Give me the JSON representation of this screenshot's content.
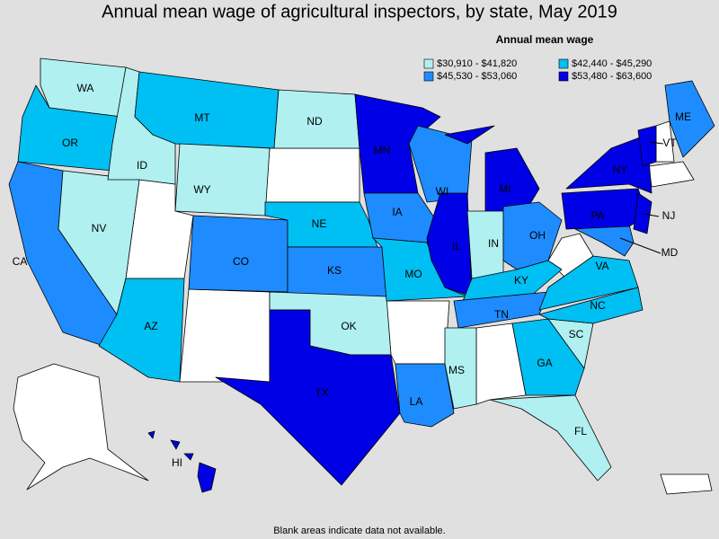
{
  "title": "Annual mean wage of agricultural inspectors, by state, May 2019",
  "legend": {
    "title": "Annual mean wage",
    "entries": [
      {
        "label": "$30,910 - $41,820",
        "color": "#b0f0f0"
      },
      {
        "label": "$42,440 - $45,290",
        "color": "#00bff2"
      },
      {
        "label": "$45,530 - $53,060",
        "color": "#1e8cff"
      },
      {
        "label": "$53,480 - $63,600",
        "color": "#0000e6"
      }
    ]
  },
  "states": [
    {
      "label": "WA",
      "bin": 0
    },
    {
      "label": "OR",
      "bin": 1
    },
    {
      "label": "CA",
      "bin": 2
    },
    {
      "label": "NV",
      "bin": 0
    },
    {
      "label": "ID",
      "bin": 0
    },
    {
      "label": "MT",
      "bin": 1
    },
    {
      "label": "WY",
      "bin": 0
    },
    {
      "label": "AZ",
      "bin": 1
    },
    {
      "label": "CO",
      "bin": 2
    },
    {
      "label": "ND",
      "bin": 0
    },
    {
      "label": "NE",
      "bin": 1
    },
    {
      "label": "KS",
      "bin": 2
    },
    {
      "label": "OK",
      "bin": 0
    },
    {
      "label": "TX",
      "bin": 3
    },
    {
      "label": "MN",
      "bin": 3
    },
    {
      "label": "IA",
      "bin": 2
    },
    {
      "label": "MO",
      "bin": 1
    },
    {
      "label": "LA",
      "bin": 2
    },
    {
      "label": "WI",
      "bin": 2
    },
    {
      "label": "IL",
      "bin": 3
    },
    {
      "label": "MI",
      "bin": 3
    },
    {
      "label": "IN",
      "bin": 0
    },
    {
      "label": "OH",
      "bin": 2
    },
    {
      "label": "KY",
      "bin": 1
    },
    {
      "label": "TN",
      "bin": 2
    },
    {
      "label": "MS",
      "bin": 0
    },
    {
      "label": "GA",
      "bin": 1
    },
    {
      "label": "FL",
      "bin": 0
    },
    {
      "label": "SC",
      "bin": 0
    },
    {
      "label": "NC",
      "bin": 1
    },
    {
      "label": "VA",
      "bin": 1
    },
    {
      "label": "MD",
      "bin": 2
    },
    {
      "label": "PA",
      "bin": 3
    },
    {
      "label": "NJ",
      "bin": 3
    },
    {
      "label": "NY",
      "bin": 3
    },
    {
      "label": "VT",
      "bin": 3
    },
    {
      "label": "ME",
      "bin": 2
    },
    {
      "label": "HI",
      "bin": 3
    }
  ],
  "footnote": "Blank areas indicate data not available."
}
